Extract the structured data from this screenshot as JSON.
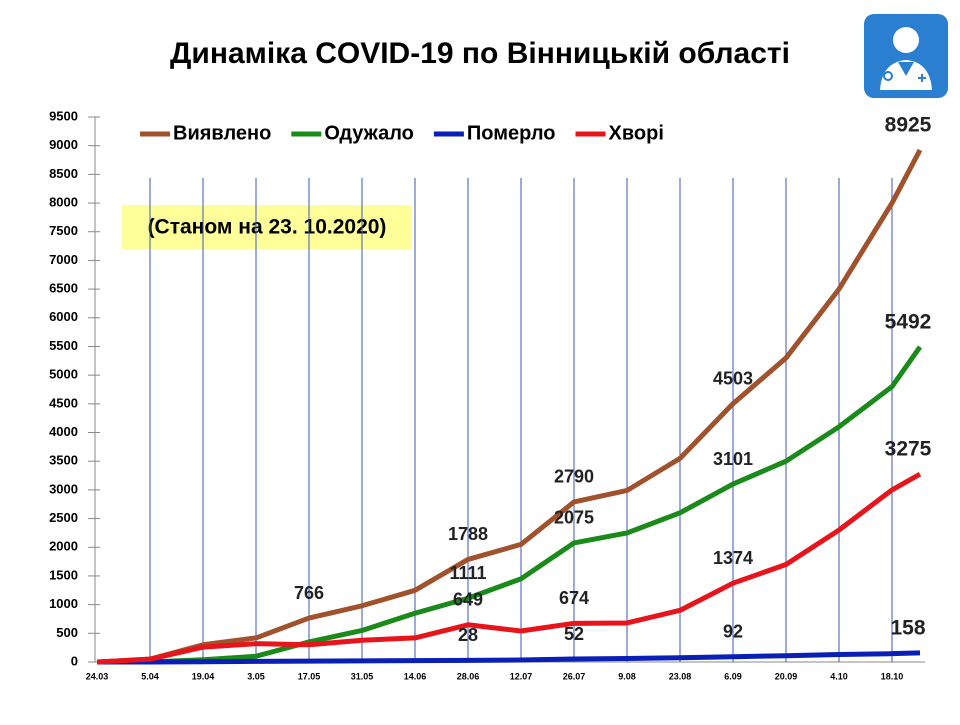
{
  "chart_data": {
    "type": "line",
    "title": "Динаміка COVID-19 по Вінницькій області",
    "subtitle": "(Станом на 23. 10.2020)",
    "categories": [
      "24.03",
      "5.04",
      "19.04",
      "3.05",
      "17.05",
      "31.05",
      "14.06",
      "28.06",
      "12.07",
      "26.07",
      "9.08",
      "23.08",
      "6.09",
      "20.09",
      "4.10",
      "18.10",
      null
    ],
    "series": [
      {
        "name": "Виявлено",
        "color": "#a0522d",
        "values": [
          0,
          50,
          300,
          420,
          766,
          980,
          1250,
          1788,
          2050,
          2790,
          2990,
          3550,
          4503,
          5300,
          6500,
          8000,
          8925
        ],
        "value_labels": [
          null,
          null,
          null,
          null,
          "766",
          null,
          null,
          "1788",
          null,
          "2790",
          null,
          null,
          "4503",
          null,
          null,
          null,
          "8925"
        ]
      },
      {
        "name": "Одужало",
        "color": "#1a8a1a",
        "values": [
          0,
          0,
          40,
          100,
          350,
          550,
          850,
          1111,
          1450,
          2075,
          2250,
          2600,
          3101,
          3500,
          4100,
          4800,
          5492
        ],
        "value_labels": [
          null,
          null,
          null,
          null,
          null,
          null,
          null,
          "1111",
          null,
          "2075",
          null,
          null,
          "3101",
          null,
          null,
          null,
          "5492"
        ]
      },
      {
        "name": "Померло",
        "color": "#0a1fb5",
        "values": [
          0,
          0,
          5,
          10,
          15,
          20,
          25,
          28,
          35,
          52,
          60,
          75,
          92,
          110,
          130,
          145,
          158
        ],
        "value_labels": [
          null,
          null,
          null,
          null,
          null,
          null,
          null,
          "28",
          null,
          "52",
          null,
          null,
          "92",
          null,
          null,
          null,
          "158"
        ]
      },
      {
        "name": "Хворі",
        "color": "#e8141b",
        "values": [
          0,
          50,
          260,
          320,
          300,
          380,
          420,
          649,
          540,
          674,
          680,
          900,
          1374,
          1700,
          2300,
          3000,
          3275
        ],
        "value_labels": [
          null,
          null,
          null,
          null,
          null,
          null,
          null,
          "649",
          null,
          "674",
          null,
          null,
          "1374",
          null,
          null,
          null,
          "3275"
        ]
      }
    ],
    "ylim": [
      0,
      9500
    ],
    "yticks": [
      0,
      500,
      1000,
      1500,
      2000,
      2500,
      3000,
      3500,
      4000,
      4500,
      5000,
      5500,
      6000,
      6500,
      7000,
      7500,
      8000,
      8500,
      9000,
      9500
    ],
    "grid": true
  }
}
